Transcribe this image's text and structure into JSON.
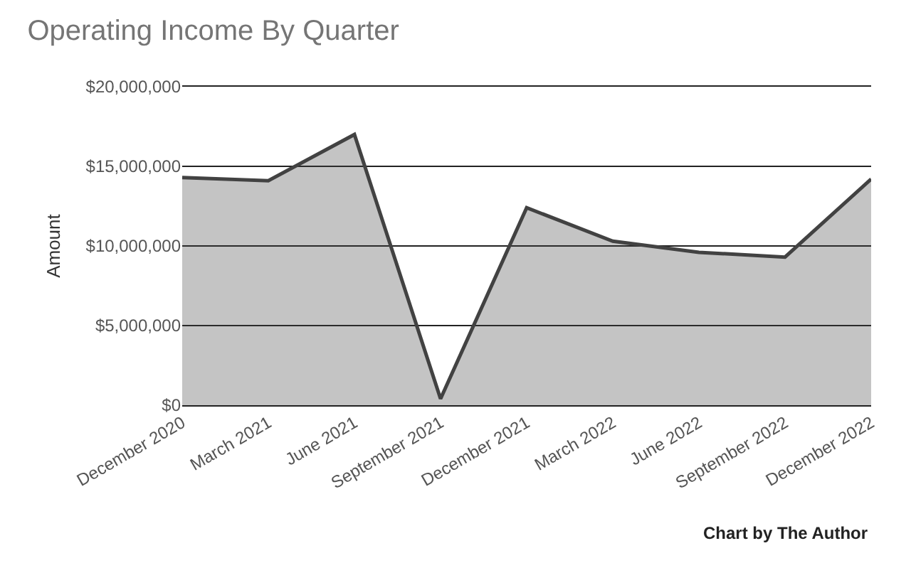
{
  "chart_data": {
    "type": "area",
    "title": "Operating Income By Quarter",
    "ylabel": "Amount",
    "annotations": [
      "Chart by The Author"
    ],
    "categories": [
      "December 2020",
      "March 2021",
      "June 2021",
      "September 2021",
      "December 2021",
      "March 2022",
      "June 2022",
      "September 2022",
      "December 2022"
    ],
    "series": [
      {
        "color": "#424242",
        "values": [
          14300000,
          14100000,
          17000000,
          400000,
          12400000,
          10300000,
          9600000,
          9300000,
          14200000
        ]
      }
    ],
    "ylim": [
      0,
      20000000
    ],
    "yticks": [
      {
        "value": 0,
        "label": "$0"
      },
      {
        "value": 5000000,
        "label": "$5,000,000"
      },
      {
        "value": 10000000,
        "label": "$10,000,000"
      },
      {
        "value": 15000000,
        "label": "$15,000,000"
      },
      {
        "value": 20000000,
        "label": "$20,000,000"
      }
    ],
    "grid": "y",
    "marker": "none",
    "line_style": "solid"
  }
}
